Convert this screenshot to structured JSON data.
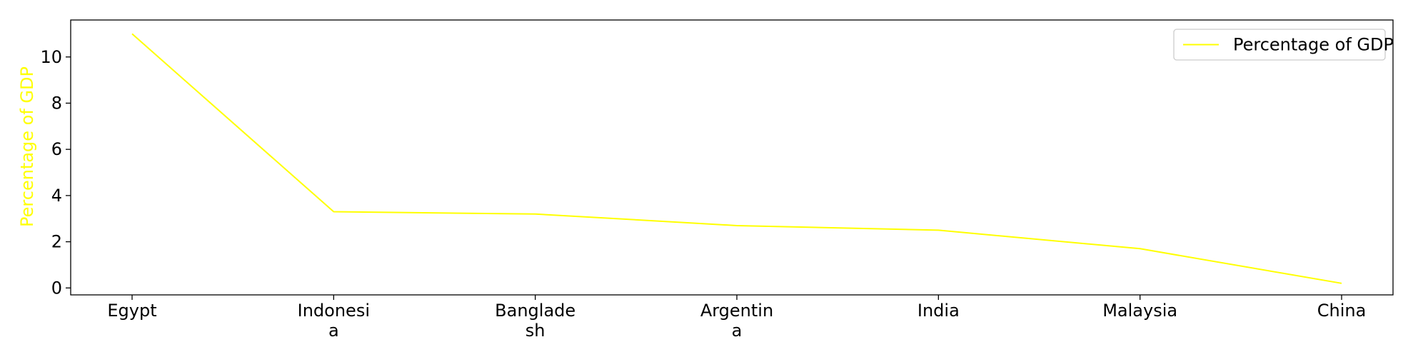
{
  "chart_data": {
    "type": "line",
    "categories": [
      "Egypt",
      "Indonesia",
      "Bangladesh",
      "Argentina",
      "India",
      "Malaysia",
      "China"
    ],
    "category_tick_lines": [
      [
        "Egypt"
      ],
      [
        "Indonesi",
        "a"
      ],
      [
        "Banglade",
        "sh"
      ],
      [
        "Argentin",
        "a"
      ],
      [
        "India"
      ],
      [
        "Malaysia"
      ],
      [
        "China"
      ]
    ],
    "series": [
      {
        "name": "Percentage of GDP",
        "values": [
          11.0,
          3.3,
          3.2,
          2.7,
          2.5,
          1.7,
          0.2
        ],
        "color": "#ffff00"
      }
    ],
    "ylabel": "Percentage of GDP",
    "ylabel_color": "#ffff00",
    "yticks": [
      0,
      2,
      4,
      6,
      8,
      10
    ],
    "ylim": [
      -0.3,
      11.6
    ],
    "grid": false,
    "legend_position": "top-right",
    "frame_color": "#000000"
  }
}
